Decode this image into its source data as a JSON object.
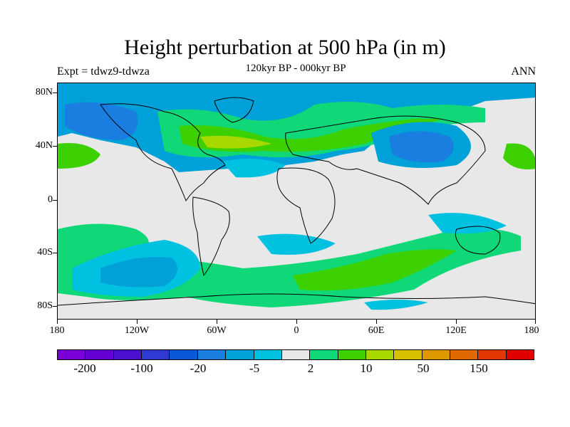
{
  "title": "Height perturbation at 500 hPa (in m)",
  "subtitle": "120kyr BP - 000kyr BP",
  "left_label": "Expt = tdwz9-tdwza",
  "right_label": "ANN",
  "lat_ticks": [
    "80N",
    "40N",
    "0",
    "40S",
    "80S"
  ],
  "lon_ticks": [
    "180",
    "120W",
    "60W",
    "0",
    "60E",
    "120E",
    "180"
  ],
  "colorbar": {
    "colors": [
      "#7b00d8",
      "#6400d2",
      "#4b10cf",
      "#2e3ad2",
      "#0a5ad8",
      "#1a7ee0",
      "#00a0d8",
      "#00c2e0",
      "#e8e8e8",
      "#10d878",
      "#3cd000",
      "#a8d800",
      "#d8c000",
      "#e09800",
      "#e06800",
      "#e03800",
      "#e00000"
    ],
    "labels": [
      "-200",
      "-100",
      "-20",
      "-5",
      "2",
      "10",
      "50",
      "150"
    ]
  },
  "field_colors": {
    "neutral": "#e8e8e8",
    "pos_light": "#10d878",
    "pos_mid": "#3cd000",
    "pos_strong": "#a8d800",
    "neg_light": "#00c2e0",
    "neg_mid": "#00a0d8",
    "neg_strong": "#1a7ee0"
  }
}
